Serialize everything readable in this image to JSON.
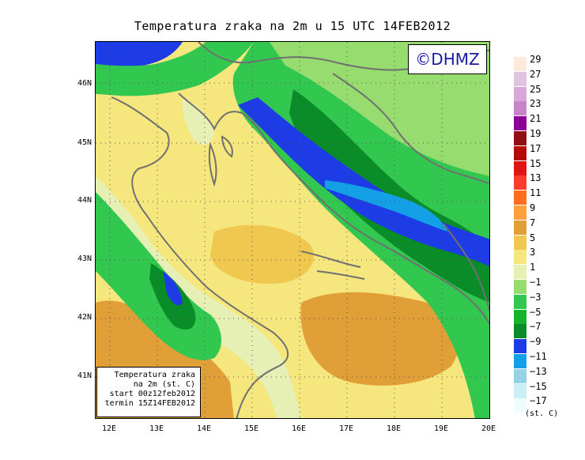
{
  "title": "Temperatura zraka na 2m u 15 UTC 14FEB2012",
  "logo": "©DHMZ",
  "info": {
    "line1": "Temperatura zraka",
    "line2": "na 2m (st. C)",
    "line3": "start 00z12feb2012",
    "line4": "termin 15Z14FEB2012"
  },
  "lat_labels": [
    "46N",
    "45N",
    "44N",
    "43N",
    "42N",
    "41N"
  ],
  "lon_labels": [
    "12E",
    "13E",
    "14E",
    "15E",
    "16E",
    "17E",
    "18E",
    "19E",
    "20E"
  ],
  "legend": {
    "labels": [
      "29",
      "27",
      "25",
      "23",
      "21",
      "19",
      "17",
      "15",
      "13",
      "11",
      "9",
      "7",
      "5",
      "3",
      "1",
      "−1",
      "−3",
      "−5",
      "−7",
      "−9",
      "−11",
      "−13",
      "−15",
      "−17"
    ],
    "colors": [
      "#fcebdc",
      "#e2c4e2",
      "#d8a6d8",
      "#c884c8",
      "#8c0096",
      "#8e0f14",
      "#b40a0a",
      "#e21414",
      "#fa3c2c",
      "#ff6e1e",
      "#ffa03c",
      "#e1a037",
      "#f0c850",
      "#f5e67d",
      "#e6f0b4",
      "#96dc6e",
      "#32c850",
      "#16b42d",
      "#0a8c28",
      "#1e3ce6",
      "#14a0e6",
      "#96d2e6",
      "#c8eff5",
      "#eefcfc"
    ],
    "unit": "(st. C)"
  }
}
